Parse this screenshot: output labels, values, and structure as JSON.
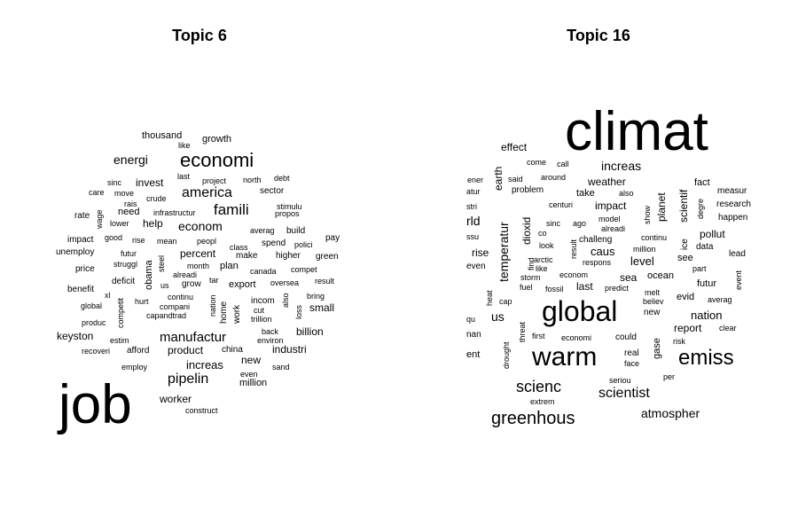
{
  "chart_data": [
    {
      "type": "wordcloud",
      "title": "Topic 6",
      "words": [
        {
          "text": "job",
          "weight": 62
        },
        {
          "text": "economi",
          "weight": 22
        },
        {
          "text": "famili",
          "weight": 17
        },
        {
          "text": "america",
          "weight": 16
        },
        {
          "text": "pipelin",
          "weight": 16
        },
        {
          "text": "manufactur",
          "weight": 15
        },
        {
          "text": "econom",
          "weight": 14
        },
        {
          "text": "energi",
          "weight": 14
        },
        {
          "text": "increas",
          "weight": 13
        },
        {
          "text": "percent",
          "weight": 12
        },
        {
          "text": "small",
          "weight": 12
        },
        {
          "text": "billion",
          "weight": 12
        },
        {
          "text": "keyston",
          "weight": 12
        },
        {
          "text": "worker",
          "weight": 12
        },
        {
          "text": "invest",
          "weight": 12
        },
        {
          "text": "help",
          "weight": 12
        },
        {
          "text": "new",
          "weight": 12
        },
        {
          "text": "industri",
          "weight": 12
        },
        {
          "text": "product",
          "weight": 12
        },
        {
          "text": "million",
          "weight": 11
        },
        {
          "text": "obama",
          "weight": 11
        },
        {
          "text": "export",
          "weight": 11
        },
        {
          "text": "plan",
          "weight": 11
        },
        {
          "text": "need",
          "weight": 11
        },
        {
          "text": "growth",
          "weight": 11
        },
        {
          "text": "thousand",
          "weight": 11
        },
        {
          "text": "make",
          "weight": 10
        },
        {
          "text": "grow",
          "weight": 10
        },
        {
          "text": "deficit",
          "weight": 10
        },
        {
          "text": "price",
          "weight": 10
        },
        {
          "text": "rate",
          "weight": 10
        },
        {
          "text": "unemploy",
          "weight": 10
        },
        {
          "text": "impact",
          "weight": 10
        },
        {
          "text": "benefit",
          "weight": 10
        },
        {
          "text": "sector",
          "weight": 10
        },
        {
          "text": "build",
          "weight": 10
        },
        {
          "text": "pay",
          "weight": 10
        },
        {
          "text": "higher",
          "weight": 10
        },
        {
          "text": "green",
          "weight": 10
        },
        {
          "text": "home",
          "weight": 10
        },
        {
          "text": "work",
          "weight": 10
        },
        {
          "text": "incom",
          "weight": 10
        },
        {
          "text": "afford",
          "weight": 10
        },
        {
          "text": "china",
          "weight": 10
        },
        {
          "text": "spend",
          "weight": 10
        },
        {
          "text": "debt",
          "weight": 9
        },
        {
          "text": "last",
          "weight": 9
        },
        {
          "text": "rais",
          "weight": 9
        },
        {
          "text": "mean",
          "weight": 9
        },
        {
          "text": "peopl",
          "weight": 9
        },
        {
          "text": "month",
          "weight": 9
        },
        {
          "text": "canada",
          "weight": 9
        },
        {
          "text": "compet",
          "weight": 9
        },
        {
          "text": "oversea",
          "weight": 9
        },
        {
          "text": "us",
          "weight": 9
        },
        {
          "text": "continu",
          "weight": 9
        },
        {
          "text": "trillion",
          "weight": 9
        },
        {
          "text": "back",
          "weight": 9
        },
        {
          "text": "sand",
          "weight": 9
        },
        {
          "text": "polici",
          "weight": 9
        },
        {
          "text": "averag",
          "weight": 9
        },
        {
          "text": "propos",
          "weight": 9
        },
        {
          "text": "stimulu",
          "weight": 9
        },
        {
          "text": "nation",
          "weight": 9
        },
        {
          "text": "employ",
          "weight": 9
        },
        {
          "text": "hurt",
          "weight": 9
        },
        {
          "text": "competit",
          "weight": 9
        },
        {
          "text": "capandtrad",
          "weight": 9
        },
        {
          "text": "compani",
          "weight": 9
        },
        {
          "text": "alreadi",
          "weight": 9
        },
        {
          "text": "cut",
          "weight": 9
        },
        {
          "text": "environ",
          "weight": 9
        },
        {
          "text": "estim",
          "weight": 9
        },
        {
          "text": "recoveri",
          "weight": 9
        },
        {
          "text": "produc",
          "weight": 9
        },
        {
          "text": "global",
          "weight": 9
        },
        {
          "text": "xl",
          "weight": 9
        },
        {
          "text": "struggl",
          "weight": 9
        },
        {
          "text": "futur",
          "weight": 9
        },
        {
          "text": "good",
          "weight": 9
        },
        {
          "text": "rise",
          "weight": 9
        },
        {
          "text": "lower",
          "weight": 9
        },
        {
          "text": "wage",
          "weight": 9
        },
        {
          "text": "care",
          "weight": 9
        },
        {
          "text": "move",
          "weight": 9
        },
        {
          "text": "sinc",
          "weight": 9
        },
        {
          "text": "crude",
          "weight": 9
        },
        {
          "text": "infrastructur",
          "weight": 9
        },
        {
          "text": "project",
          "weight": 9
        },
        {
          "text": "north",
          "weight": 9
        },
        {
          "text": "like",
          "weight": 9
        },
        {
          "text": "class",
          "weight": 9
        },
        {
          "text": "steel",
          "weight": 9
        },
        {
          "text": "tar",
          "weight": 9
        },
        {
          "text": "also",
          "weight": 9
        },
        {
          "text": "loss",
          "weight": 9
        },
        {
          "text": "bring",
          "weight": 9
        },
        {
          "text": "result",
          "weight": 9
        },
        {
          "text": "even",
          "weight": 9
        },
        {
          "text": "construct",
          "weight": 9
        }
      ]
    },
    {
      "type": "wordcloud",
      "title": "Topic 16",
      "words": [
        {
          "text": "climat",
          "weight": 62
        },
        {
          "text": "global",
          "weight": 32
        },
        {
          "text": "warm",
          "weight": 30
        },
        {
          "text": "emiss",
          "weight": 24
        },
        {
          "text": "greenhous",
          "weight": 20
        },
        {
          "text": "scienc",
          "weight": 18
        },
        {
          "text": "scientist",
          "weight": 16
        },
        {
          "text": "atmospher",
          "weight": 14
        },
        {
          "text": "increas",
          "weight": 14
        },
        {
          "text": "temperatur",
          "weight": 14
        },
        {
          "text": "nation",
          "weight": 13
        },
        {
          "text": "level",
          "weight": 13
        },
        {
          "text": "caus",
          "weight": 13
        },
        {
          "text": "impact",
          "weight": 12
        },
        {
          "text": "weather",
          "weight": 12
        },
        {
          "text": "scientif",
          "weight": 12
        },
        {
          "text": "dioxid",
          "weight": 12
        },
        {
          "text": "effect",
          "weight": 12
        },
        {
          "text": "pollut",
          "weight": 12
        },
        {
          "text": "report",
          "weight": 12
        },
        {
          "text": "planet",
          "weight": 12
        },
        {
          "text": "earth",
          "weight": 12
        },
        {
          "text": "us",
          "weight": 14
        },
        {
          "text": "rise",
          "weight": 12
        },
        {
          "text": "sea",
          "weight": 12
        },
        {
          "text": "last",
          "weight": 12
        },
        {
          "text": "gase",
          "weight": 11
        },
        {
          "text": "ocean",
          "weight": 11
        },
        {
          "text": "futur",
          "weight": 11
        },
        {
          "text": "fact",
          "weight": 11
        },
        {
          "text": "take",
          "weight": 11
        },
        {
          "text": "see",
          "weight": 11
        },
        {
          "text": "evid",
          "weight": 11
        },
        {
          "text": "could",
          "weight": 10
        },
        {
          "text": "data",
          "weight": 10
        },
        {
          "text": "challeng",
          "weight": 10
        },
        {
          "text": "lead",
          "weight": 10
        },
        {
          "text": "real",
          "weight": 10
        },
        {
          "text": "new",
          "weight": 10
        },
        {
          "text": "measur",
          "weight": 10
        },
        {
          "text": "research",
          "weight": 10
        },
        {
          "text": "happen",
          "weight": 10
        },
        {
          "text": "ice",
          "weight": 10
        },
        {
          "text": "around",
          "weight": 9
        },
        {
          "text": "call",
          "weight": 9
        },
        {
          "text": "come",
          "weight": 9
        },
        {
          "text": "said",
          "weight": 9
        },
        {
          "text": "problem",
          "weight": 10
        },
        {
          "text": "centuri",
          "weight": 9
        },
        {
          "text": "also",
          "weight": 9
        },
        {
          "text": "show",
          "weight": 9
        },
        {
          "text": "degre",
          "weight": 9
        },
        {
          "text": "sinc",
          "weight": 9
        },
        {
          "text": "ago",
          "weight": 9
        },
        {
          "text": "model",
          "weight": 9
        },
        {
          "text": "alreadi",
          "weight": 9
        },
        {
          "text": "co",
          "weight": 9
        },
        {
          "text": "look",
          "weight": 9
        },
        {
          "text": "result",
          "weight": 9
        },
        {
          "text": "arctic",
          "weight": 9
        },
        {
          "text": "respons",
          "weight": 9
        },
        {
          "text": "million",
          "weight": 9
        },
        {
          "text": "continu",
          "weight": 9
        },
        {
          "text": "like",
          "weight": 9
        },
        {
          "text": "find",
          "weight": 9
        },
        {
          "text": "storm",
          "weight": 9
        },
        {
          "text": "fuel",
          "weight": 9
        },
        {
          "text": "fossil",
          "weight": 9
        },
        {
          "text": "econom",
          "weight": 9
        },
        {
          "text": "predict",
          "weight": 9
        },
        {
          "text": "part",
          "weight": 9
        },
        {
          "text": "event",
          "weight": 9
        },
        {
          "text": "melt",
          "weight": 9
        },
        {
          "text": "believ",
          "weight": 9
        },
        {
          "text": "averag",
          "weight": 9
        },
        {
          "text": "cap",
          "weight": 9
        },
        {
          "text": "heat",
          "weight": 9
        },
        {
          "text": "threat",
          "weight": 9
        },
        {
          "text": "first",
          "weight": 9
        },
        {
          "text": "economi",
          "weight": 9
        },
        {
          "text": "clear",
          "weight": 9
        },
        {
          "text": "risk",
          "weight": 9
        },
        {
          "text": "face",
          "weight": 9
        },
        {
          "text": "drought",
          "weight": 9
        },
        {
          "text": "seriou",
          "weight": 9
        },
        {
          "text": "per",
          "weight": 9
        },
        {
          "text": "extrem",
          "weight": 9
        },
        {
          "text": "ener",
          "weight": 9
        },
        {
          "text": "atur",
          "weight": 9
        },
        {
          "text": "stri",
          "weight": 9
        },
        {
          "text": "rld",
          "weight": 14
        },
        {
          "text": "ssu",
          "weight": 9
        },
        {
          "text": "even",
          "weight": 10
        },
        {
          "text": "qu",
          "weight": 9
        },
        {
          "text": "nan",
          "weight": 10
        },
        {
          "text": "ent",
          "weight": 11
        }
      ]
    }
  ]
}
